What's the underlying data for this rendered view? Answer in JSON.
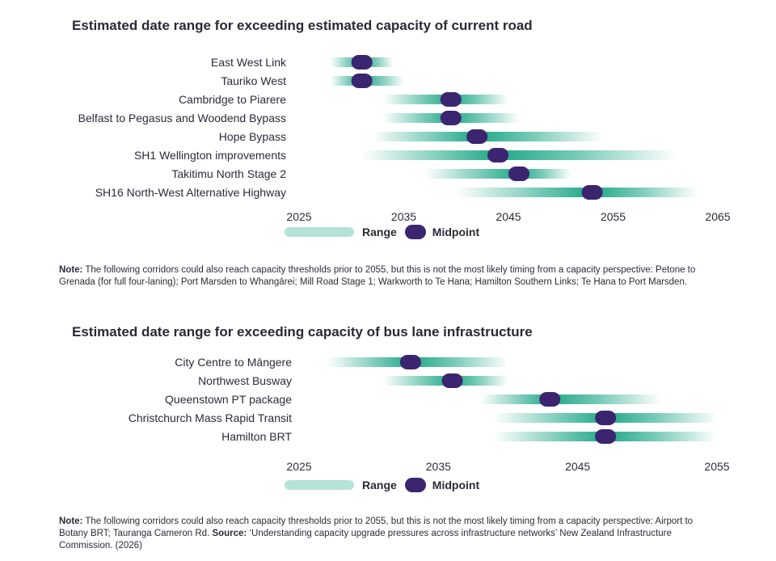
{
  "colors": {
    "range": "#1fa888",
    "range_light": "#b5e3d9",
    "midpoint": "#3b2470",
    "text": "#2b2b3a"
  },
  "legend": {
    "range_label": "Range",
    "midpoint_label": "Midpoint"
  },
  "chart_data": [
    {
      "type": "range",
      "title": "Estimated date range for exceeding estimated capacity of current road",
      "xlim": [
        2025,
        2065
      ],
      "ticks": [
        "2025",
        "2035",
        "2045",
        "2055",
        "2065"
      ],
      "rows": [
        {
          "label": "East West Link",
          "start": 2028,
          "end": 2034,
          "mid": 2031
        },
        {
          "label": "Tauriko West",
          "start": 2028,
          "end": 2035,
          "mid": 2031
        },
        {
          "label": "Cambridge to Piarere",
          "start": 2033,
          "end": 2045,
          "mid": 2039.5
        },
        {
          "label": "Belfast to Pegasus and Woodend Bypass",
          "start": 2033,
          "end": 2046,
          "mid": 2039.5
        },
        {
          "label": "Hope Bypass",
          "start": 2032,
          "end": 2054,
          "mid": 2042
        },
        {
          "label": "SH1 Wellington improvements",
          "start": 2031,
          "end": 2061,
          "mid": 2044
        },
        {
          "label": "Takitimu North Stage 2",
          "start": 2037,
          "end": 2051,
          "mid": 2046
        },
        {
          "label": "SH16 North-West Alternative Highway",
          "start": 2040,
          "end": 2063,
          "mid": 2053
        }
      ]
    },
    {
      "type": "range",
      "title": "Estimated date range for exceeding capacity of bus lane infrastructure",
      "xlim": [
        2025,
        2055
      ],
      "ticks": [
        "2025",
        "2035",
        "2045",
        "2055"
      ],
      "rows": [
        {
          "label": "City Centre to Māngere",
          "start": 2027,
          "end": 2040,
          "mid": 2033
        },
        {
          "label": "Northwest Busway",
          "start": 2031,
          "end": 2040,
          "mid": 2036
        },
        {
          "label": "Queenstown PT package",
          "start": 2038,
          "end": 2051,
          "mid": 2043
        },
        {
          "label": "Christchurch Mass Rapid Transit",
          "start": 2039,
          "end": 2055,
          "mid": 2047
        },
        {
          "label": "Hamilton BRT",
          "start": 2039,
          "end": 2055,
          "mid": 2047
        }
      ]
    }
  ],
  "notes": {
    "note1_label": "Note:",
    "note1_text": " The following corridors could also reach capacity thresholds prior to 2055, but this is not the most likely timing from a capacity perspective: Petone to Grenada (for full four-laning); Port Marsden to Whangārei; Mill Road Stage 1; Warkworth to Te Hana; Hamilton Southern Links; Te Hana to Port Marsden.",
    "note2_label": "Note:",
    "note2_text": " The following corridors could also reach capacity thresholds prior to 2055, but this is not the most likely timing from a capacity perspective: Airport to Botany BRT; Tauranga Cameron Rd. ",
    "source_label": "Source:",
    "source_text": " ‘Understanding capacity upgrade pressures across infrastructure networks’ New Zealand Infrastructure Commission. (2026)"
  }
}
